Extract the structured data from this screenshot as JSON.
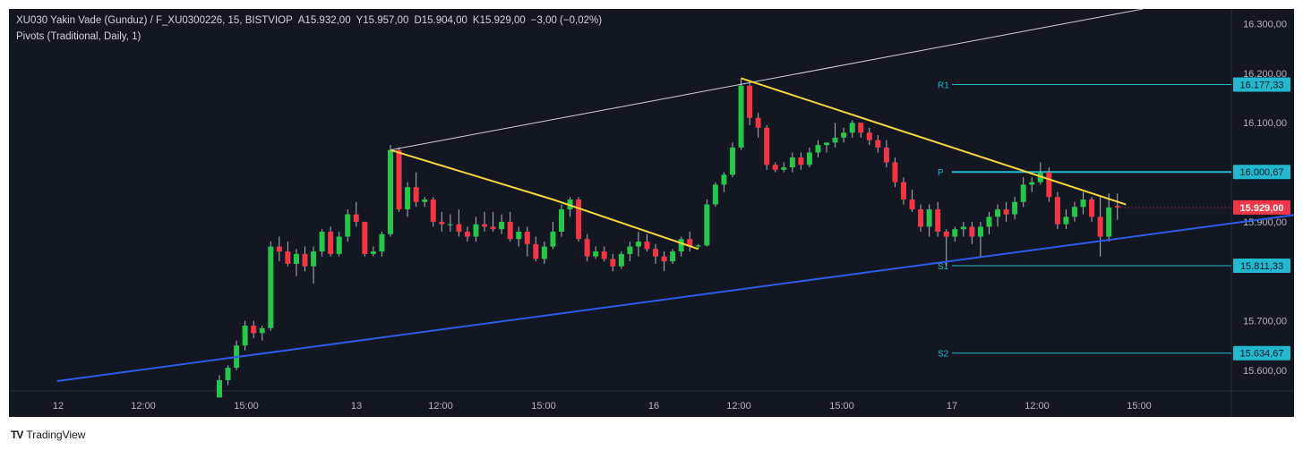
{
  "header": {
    "symbol": "XU030 Yakin Vade  (Gunduz) / F_XU0300226, 15, BISTVIOP",
    "open": "A15.932,00",
    "high": "Y15.957,00",
    "low": "D15.904,00",
    "close": "K15.929,00",
    "change": "−3,00 (−0,02%)",
    "indicator": "Pivots (Traditional, Daily, 1)"
  },
  "footer": {
    "brand": "TradingView",
    "logo_icon": "tradingview-logo-icon"
  },
  "colors": {
    "background": "#131722",
    "up": "#26c64b",
    "down": "#f23645",
    "pivot": "#22b8cf",
    "trend_yellow": "#f5d63d",
    "trend_blue": "#2f5bea",
    "trend_white": "#d1d4dc",
    "last_price": "#f23645"
  },
  "chart_data": {
    "type": "candlestick",
    "x_axis": {
      "tick_labels": [
        "12",
        "12:00",
        "15:00",
        "13",
        "12:00",
        "15:00",
        "16",
        "12:00",
        "15:00",
        "17",
        "12:00",
        "15:00"
      ]
    },
    "y_axis": {
      "range": [
        15560,
        16330
      ],
      "tick_labels": [
        "16.300,00",
        "16.200,00",
        "16.100,00",
        "15.900,00",
        "15.700,00",
        "15.600,00"
      ],
      "tick_values": [
        16300,
        16200,
        16100,
        15900,
        15700,
        15600
      ]
    },
    "last_price": {
      "value": 15929,
      "label": "15.929,00"
    },
    "pivots": [
      {
        "name": "R1",
        "value": 16177.33,
        "label": "16.177,33"
      },
      {
        "name": "P",
        "value": 16000.67,
        "label": "16.000,67"
      },
      {
        "name": "S1",
        "value": 15811.33,
        "label": "15.811,33"
      },
      {
        "name": "S2",
        "value": 15634.67,
        "label": "15.634,67"
      }
    ],
    "candles": [
      [
        15545,
        15590,
        15545,
        15580
      ],
      [
        15580,
        15610,
        15570,
        15605
      ],
      [
        15605,
        15660,
        15600,
        15650
      ],
      [
        15650,
        15700,
        15640,
        15690
      ],
      [
        15690,
        15700,
        15665,
        15675
      ],
      [
        15675,
        15690,
        15660,
        15685
      ],
      [
        15685,
        15860,
        15680,
        15850
      ],
      [
        15850,
        15870,
        15820,
        15840
      ],
      [
        15840,
        15860,
        15810,
        15815
      ],
      [
        15815,
        15845,
        15790,
        15835
      ],
      [
        15835,
        15850,
        15800,
        15810
      ],
      [
        15810,
        15850,
        15775,
        15840
      ],
      [
        15840,
        15885,
        15830,
        15880
      ],
      [
        15880,
        15890,
        15830,
        15835
      ],
      [
        15835,
        15880,
        15830,
        15870
      ],
      [
        15870,
        15925,
        15860,
        15915
      ],
      [
        15915,
        15940,
        15890,
        15900
      ],
      [
        15900,
        15900,
        15830,
        15835
      ],
      [
        15835,
        15850,
        15830,
        15840
      ],
      [
        15840,
        15880,
        15830,
        15875
      ],
      [
        15875,
        16055,
        15870,
        16045
      ],
      [
        16045,
        16050,
        15920,
        15925
      ],
      [
        15925,
        15980,
        15910,
        15970
      ],
      [
        15970,
        16000,
        15930,
        15940
      ],
      [
        15940,
        15950,
        15930,
        15945
      ],
      [
        15945,
        15950,
        15890,
        15900
      ],
      [
        15900,
        15920,
        15880,
        15895
      ],
      [
        15895,
        15915,
        15880,
        15895
      ],
      [
        15895,
        15925,
        15870,
        15880
      ],
      [
        15880,
        15890,
        15860,
        15870
      ],
      [
        15870,
        15910,
        15860,
        15895
      ],
      [
        15895,
        15920,
        15880,
        15890
      ],
      [
        15890,
        15920,
        15880,
        15885
      ],
      [
        15885,
        15915,
        15875,
        15900
      ],
      [
        15900,
        15920,
        15860,
        15865
      ],
      [
        15865,
        15890,
        15850,
        15880
      ],
      [
        15880,
        15890,
        15830,
        15855
      ],
      [
        15855,
        15870,
        15820,
        15825
      ],
      [
        15825,
        15860,
        15815,
        15850
      ],
      [
        15850,
        15900,
        15845,
        15880
      ],
      [
        15880,
        15935,
        15870,
        15925
      ],
      [
        15925,
        15950,
        15910,
        15945
      ],
      [
        15945,
        15950,
        15860,
        15865
      ],
      [
        15865,
        15875,
        15820,
        15830
      ],
      [
        15830,
        15850,
        15825,
        15840
      ],
      [
        15840,
        15850,
        15820,
        15825
      ],
      [
        15825,
        15835,
        15800,
        15810
      ],
      [
        15810,
        15840,
        15805,
        15835
      ],
      [
        15835,
        15860,
        15820,
        15850
      ],
      [
        15850,
        15880,
        15830,
        15860
      ],
      [
        15860,
        15875,
        15840,
        15845
      ],
      [
        15845,
        15855,
        15815,
        15830
      ],
      [
        15830,
        15840,
        15800,
        15820
      ],
      [
        15820,
        15845,
        15815,
        15840
      ],
      [
        15840,
        15870,
        15830,
        15865
      ],
      [
        15865,
        15880,
        15840,
        15850
      ],
      [
        15850,
        15855,
        15845,
        15852
      ],
      [
        15852,
        15945,
        15850,
        15935
      ],
      [
        15935,
        15980,
        15930,
        15975
      ],
      [
        15975,
        16000,
        15960,
        15995
      ],
      [
        15995,
        16060,
        15990,
        16050
      ],
      [
        16050,
        16190,
        16045,
        16175
      ],
      [
        16175,
        16180,
        16095,
        16110
      ],
      [
        16110,
        16120,
        16070,
        16090
      ],
      [
        16090,
        16095,
        16005,
        16015
      ],
      [
        16015,
        16020,
        16000,
        16005
      ],
      [
        16005,
        16020,
        16000,
        16010
      ],
      [
        16010,
        16040,
        16000,
        16030
      ],
      [
        16030,
        16040,
        16005,
        16015
      ],
      [
        16015,
        16050,
        16010,
        16040
      ],
      [
        16040,
        16065,
        16030,
        16055
      ],
      [
        16055,
        16060,
        16040,
        16060
      ],
      [
        16060,
        16100,
        16050,
        16070
      ],
      [
        16070,
        16090,
        16060,
        16080
      ],
      [
        16080,
        16105,
        16070,
        16100
      ],
      [
        16100,
        16100,
        16070,
        16080
      ],
      [
        16080,
        16090,
        16055,
        16065
      ],
      [
        16065,
        16075,
        16040,
        16050
      ],
      [
        16050,
        16065,
        16010,
        16020
      ],
      [
        16020,
        16030,
        15970,
        15980
      ],
      [
        15980,
        15990,
        15935,
        15945
      ],
      [
        15945,
        15965,
        15920,
        15925
      ],
      [
        15925,
        15935,
        15880,
        15890
      ],
      [
        15890,
        15935,
        15870,
        15925
      ],
      [
        15925,
        15940,
        15870,
        15880
      ],
      [
        15880,
        15885,
        15810,
        15870
      ],
      [
        15870,
        15890,
        15860,
        15885
      ],
      [
        15885,
        15900,
        15870,
        15890
      ],
      [
        15890,
        15900,
        15855,
        15870
      ],
      [
        15870,
        15900,
        15830,
        15890
      ],
      [
        15890,
        15920,
        15875,
        15910
      ],
      [
        15910,
        15935,
        15890,
        15925
      ],
      [
        15925,
        15940,
        15900,
        15915
      ],
      [
        15915,
        15950,
        15905,
        15940
      ],
      [
        15940,
        15990,
        15930,
        15975
      ],
      [
        15975,
        15990,
        15960,
        15980
      ],
      [
        15980,
        16020,
        15975,
        16000
      ],
      [
        16000,
        16010,
        15940,
        15950
      ],
      [
        15950,
        15960,
        15885,
        15895
      ],
      [
        15895,
        15925,
        15885,
        15910
      ],
      [
        15910,
        15940,
        15900,
        15930
      ],
      [
        15930,
        15960,
        15915,
        15945
      ],
      [
        15945,
        15950,
        15900,
        15910
      ],
      [
        15910,
        15950,
        15830,
        15870
      ],
      [
        15870,
        15957,
        15860,
        15929
      ],
      [
        15932,
        15957,
        15904,
        15929
      ]
    ],
    "trendlines": [
      {
        "color": "white",
        "from": [
          20,
          16045
        ],
        "to": [
          108,
          16330
        ]
      },
      {
        "color": "yellow",
        "from": [
          20,
          16045
        ],
        "to": [
          39,
          15945
        ]
      },
      {
        "color": "yellow",
        "from": [
          39,
          15945
        ],
        "to": [
          56,
          15845
        ]
      },
      {
        "color": "yellow",
        "from": [
          61,
          16190
        ],
        "to": [
          106,
          15935
        ]
      },
      {
        "color": "blue",
        "from": [
          -19,
          15578
        ],
        "to": [
          168,
          16012
        ]
      }
    ]
  }
}
